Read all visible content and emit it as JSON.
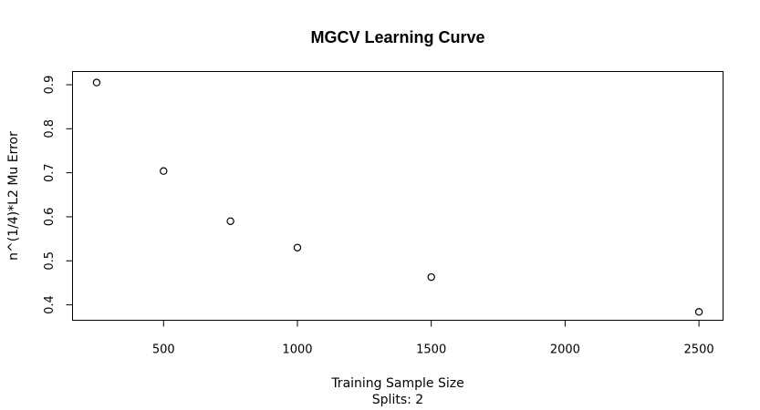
{
  "chart_data": {
    "type": "scatter",
    "title": "MGCV Learning Curve",
    "xlabel": "Training Sample Size",
    "subtitle": "Splits: 2",
    "ylabel": "n^(1/4)*L2 Mu Error",
    "x": [
      250,
      500,
      750,
      1000,
      1500,
      2500
    ],
    "y": [
      0.905,
      0.704,
      0.59,
      0.53,
      0.463,
      0.384
    ],
    "xlim": [
      160,
      2590
    ],
    "ylim": [
      0.365,
      0.93
    ],
    "xticks": [
      500,
      1000,
      1500,
      2000,
      2500
    ],
    "xtick_labels": [
      "500",
      "1000",
      "1500",
      "2000",
      "2500"
    ],
    "yticks": [
      0.4,
      0.5,
      0.6,
      0.7,
      0.8,
      0.9
    ],
    "ytick_labels": [
      "0.4",
      "0.5",
      "0.6",
      "0.7",
      "0.8",
      "0.9"
    ],
    "grid": false,
    "marker": "open-circle"
  }
}
